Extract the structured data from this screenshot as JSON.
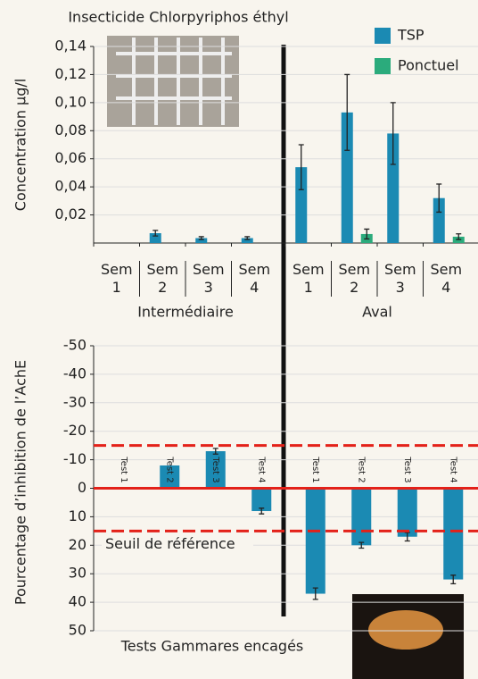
{
  "chart_data": [
    {
      "type": "bar",
      "title": "Insecticide  Chlorpyriphos éthyl",
      "y_label": "Concentration µg/l",
      "groups": [
        {
          "name": "Intermédiaire",
          "categories": [
            "Sem 1",
            "Sem 2",
            "Sem 3",
            "Sem 4"
          ]
        },
        {
          "name": "Aval",
          "categories": [
            "Sem 1",
            "Sem 2",
            "Sem 3",
            "Sem 4"
          ]
        }
      ],
      "series": [
        {
          "name": "TSP",
          "color": "#1b8ab3",
          "values": [
            [
              null,
              0.007,
              0.0035,
              0.0035
            ],
            [
              0.054,
              0.093,
              0.078,
              0.032
            ]
          ],
          "errors": [
            [
              null,
              0.002,
              0.001,
              0.001
            ],
            [
              0.016,
              0.027,
              0.022,
              0.01
            ]
          ]
        },
        {
          "name": "Ponctuel",
          "color": "#2bab7c",
          "values": [
            [
              null,
              null,
              null,
              null
            ],
            [
              null,
              0.0064,
              null,
              0.0045
            ]
          ],
          "errors": [
            [
              null,
              null,
              null,
              null
            ],
            [
              null,
              0.0035,
              null,
              0.002
            ]
          ]
        }
      ],
      "ylim": [
        0,
        0.14
      ],
      "yticks": [
        {
          "value": 0.02,
          "label": "0,02"
        },
        {
          "value": 0.04,
          "label": "0,04"
        },
        {
          "value": 0.06,
          "label": "0,06"
        },
        {
          "value": 0.08,
          "label": "0,08"
        },
        {
          "value": 0.1,
          "label": "0,10"
        },
        {
          "value": 0.12,
          "label": "0,12"
        },
        {
          "value": 0.14,
          "label": "0,14"
        }
      ],
      "grid": true,
      "legend": "top-right"
    },
    {
      "type": "bar",
      "y_label": "Pourcentage d’inhibition de l’AchE",
      "x_label": "Tests Gammares encagés",
      "color": "#1b8ab3",
      "y_inverted": true,
      "groups": [
        {
          "categories": [
            "Test 1",
            "Test 2",
            "Test 3",
            "Test 4"
          ],
          "values": [
            0,
            -8,
            -13,
            8
          ],
          "errors": [
            null,
            null,
            1,
            1
          ]
        },
        {
          "categories": [
            "Test 1",
            "Test 2",
            "Test 3",
            "Test 4"
          ],
          "values": [
            37,
            20,
            17,
            32
          ],
          "errors": [
            2,
            1,
            1.5,
            1.5
          ]
        }
      ],
      "ylim": [
        -50,
        50
      ],
      "yticks": [
        -50,
        -40,
        -30,
        -20,
        -10,
        0,
        10,
        20,
        30,
        40,
        50
      ],
      "grid": true,
      "reference_lines": [
        {
          "value": -15,
          "style": "dashed"
        },
        {
          "value": 0,
          "style": "solid"
        },
        {
          "value": 15,
          "style": "dashed"
        }
      ],
      "annotation": "Seuil de référence"
    }
  ]
}
